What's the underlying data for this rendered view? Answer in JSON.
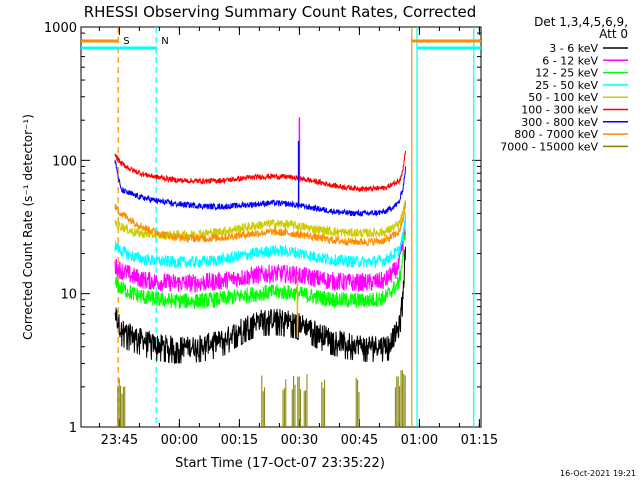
{
  "chart_data": {
    "type": "line",
    "title": "RHESSI Observing Summary Count Rates, Corrected",
    "xlabel": "Start Time (17-Oct-07 23:35:22)",
    "ylabel": "Corrected Count Rate (s⁻¹ detector⁻¹)",
    "yscale": "log",
    "ylim": [
      1,
      1000
    ],
    "xlim_minutes": [
      0,
      100
    ],
    "x_ticks": [
      {
        "label": "23:45",
        "minutes": 9.6
      },
      {
        "label": "00:00",
        "minutes": 24.6
      },
      {
        "label": "00:15",
        "minutes": 39.6
      },
      {
        "label": "00:30",
        "minutes": 54.6
      },
      {
        "label": "00:45",
        "minutes": 69.6
      },
      {
        "label": "01:00",
        "minutes": 84.6
      },
      {
        "label": "01:15",
        "minutes": 99.6
      }
    ],
    "y_ticks": [
      {
        "label": "1",
        "value": 1
      },
      {
        "label": "10",
        "value": 10
      },
      {
        "label": "100",
        "value": 100
      },
      {
        "label": "1000",
        "value": 1000
      }
    ],
    "legend_header": [
      "Det 1,3,4,5,6,9,",
      "Att 0"
    ],
    "series": [
      {
        "name": "3 - 6 keV",
        "color": "#000000",
        "x": [
          8.5,
          10,
          12,
          15,
          18,
          21,
          24,
          27,
          30,
          33,
          36,
          39,
          42,
          45,
          48,
          51,
          54,
          57,
          60,
          63,
          66,
          69,
          72,
          75,
          77,
          79.5,
          80.5,
          81.2
        ],
        "y": [
          7.2,
          5.4,
          5.0,
          4.6,
          4.2,
          4.1,
          4.0,
          4.0,
          4.1,
          4.3,
          4.6,
          5.3,
          6.0,
          6.4,
          6.5,
          6.4,
          6.1,
          5.6,
          5.0,
          4.6,
          4.3,
          4.2,
          4.1,
          4.1,
          4.2,
          5.5,
          10,
          25
        ]
      },
      {
        "name": "6 - 12 keV",
        "color": "#ff00ff",
        "x": [
          8.5,
          10,
          13,
          16,
          20,
          24,
          28,
          32,
          36,
          40,
          44,
          48,
          52,
          56,
          60,
          64,
          68,
          72,
          76,
          79.5,
          80.5,
          81.2
        ],
        "y": [
          16,
          15,
          13.5,
          12.6,
          12.2,
          12.0,
          12.0,
          12.2,
          12.6,
          13.2,
          13.8,
          14.2,
          14.0,
          13.5,
          12.8,
          12.3,
          12.1,
          12.1,
          12.5,
          16,
          24,
          35
        ]
      },
      {
        "name": "12 - 25 keV",
        "color": "#00ff00",
        "x": [
          8.5,
          10,
          13,
          16,
          20,
          24,
          28,
          32,
          36,
          40,
          44,
          48,
          52,
          56,
          60,
          64,
          68,
          72,
          76,
          79.5,
          80.5,
          81.2
        ],
        "y": [
          12,
          11,
          10,
          9.4,
          9.0,
          8.8,
          8.8,
          8.9,
          9.2,
          9.6,
          10.0,
          10.3,
          10.2,
          9.8,
          9.3,
          9.0,
          8.9,
          8.9,
          9.3,
          12,
          19,
          32
        ]
      },
      {
        "name": "25 - 50 keV",
        "color": "#00ffff",
        "x": [
          8.5,
          10,
          13,
          16,
          20,
          24,
          28,
          32,
          36,
          40,
          44,
          48,
          52,
          56,
          60,
          64,
          68,
          72,
          76,
          79.5,
          80.5,
          81.2
        ],
        "y": [
          23,
          21,
          19,
          18,
          17.5,
          17.2,
          17.2,
          17.5,
          18.2,
          19.2,
          20.2,
          21.0,
          20.8,
          19.8,
          18.5,
          17.8,
          17.4,
          17.3,
          17.8,
          21,
          27,
          38
        ]
      },
      {
        "name": "50 - 100 keV",
        "color": "#cccc00",
        "x": [
          8.5,
          10,
          13,
          16,
          20,
          24,
          28,
          32,
          36,
          40,
          44,
          48,
          52,
          56,
          60,
          64,
          68,
          72,
          76,
          79.5,
          80.5,
          81.2
        ],
        "y": [
          34,
          32,
          29,
          28,
          27.5,
          27.5,
          27.8,
          28.5,
          29.5,
          31,
          32.5,
          33.5,
          33,
          31.5,
          30,
          29,
          28.5,
          28.5,
          29,
          33,
          40,
          50
        ]
      },
      {
        "name": "100 - 300 keV",
        "color": "#ff0000",
        "x": [
          8.5,
          10,
          13,
          16,
          20,
          24,
          28,
          32,
          36,
          40,
          44,
          48,
          52,
          56,
          60,
          64,
          68,
          72,
          76,
          79.5,
          80.5,
          81.2
        ],
        "y": [
          110,
          95,
          84,
          78,
          74,
          71,
          70,
          70,
          71,
          73,
          75,
          76,
          75,
          72,
          68,
          64,
          62,
          61,
          62,
          70,
          85,
          125
        ]
      },
      {
        "name": "300 - 800 keV",
        "color": "#0000ff",
        "x": [
          8.5,
          10,
          13,
          16,
          20,
          24,
          28,
          32,
          36,
          40,
          44,
          48,
          52,
          56,
          60,
          64,
          68,
          72,
          76,
          79.5,
          80.5,
          81.2
        ],
        "y": [
          100,
          60,
          55,
          52,
          49,
          47,
          46,
          45,
          45,
          46,
          47,
          48,
          47,
          45,
          43,
          41,
          40,
          40,
          41,
          48,
          62,
          90
        ]
      },
      {
        "name": "800 - 7000 keV",
        "color": "#ff8c00",
        "x": [
          8.5,
          10,
          13,
          16,
          20,
          24,
          28,
          32,
          36,
          40,
          44,
          48,
          52,
          56,
          60,
          64,
          68,
          72,
          76,
          79.5,
          80.5,
          81.2
        ],
        "y": [
          45,
          40,
          35,
          31,
          28,
          26.5,
          26,
          26,
          26.5,
          27.5,
          28.5,
          29,
          28.5,
          27.5,
          26,
          25,
          24.5,
          24.5,
          25,
          29,
          36,
          48
        ]
      },
      {
        "name": "7000 - 15000 keV",
        "color": "#808000",
        "x": [
          8.5,
          81.2
        ],
        "y": [
          1,
          1
        ]
      }
    ],
    "annotations": [
      {
        "text": "S",
        "color": "#ff8c00",
        "minutes": 9.3,
        "style": "dashed"
      },
      {
        "text": "N",
        "color": "#00ffff",
        "minutes": 18.8,
        "style": "dashed"
      },
      {
        "text": "",
        "color": "#ff8c00",
        "minutes": 82.7,
        "style": "solid"
      },
      {
        "text": "",
        "color": "#00ffff",
        "minutes": 84.0,
        "style": "solid"
      },
      {
        "text": "",
        "color": "#00ffff",
        "minutes": 98.2,
        "style": "solid"
      }
    ],
    "spikes": [
      {
        "minutes": 54.6,
        "value": 210,
        "color": "#ff00ff"
      },
      {
        "minutes": 54.4,
        "value": 140,
        "color": "#0000ff"
      },
      {
        "minutes": 54.1,
        "value": 14,
        "color": "#ffa500"
      }
    ],
    "background_bursts": [
      {
        "start": 9.2,
        "end": 11.2,
        "value": 2
      },
      {
        "start": 45.2,
        "end": 46.0,
        "value": 2
      },
      {
        "start": 50.5,
        "end": 51.3,
        "value": 2
      },
      {
        "start": 52.8,
        "end": 53.6,
        "value": 2
      },
      {
        "start": 54.2,
        "end": 55.0,
        "value": 2
      },
      {
        "start": 55.8,
        "end": 56.6,
        "value": 2
      },
      {
        "start": 60.2,
        "end": 61.0,
        "value": 2
      },
      {
        "start": 68.8,
        "end": 69.6,
        "value": 2
      },
      {
        "start": 78.6,
        "end": 81.2,
        "value": 2.2
      }
    ]
  },
  "footer": {
    "timestamp": "16-Oct-2021 19:21"
  }
}
